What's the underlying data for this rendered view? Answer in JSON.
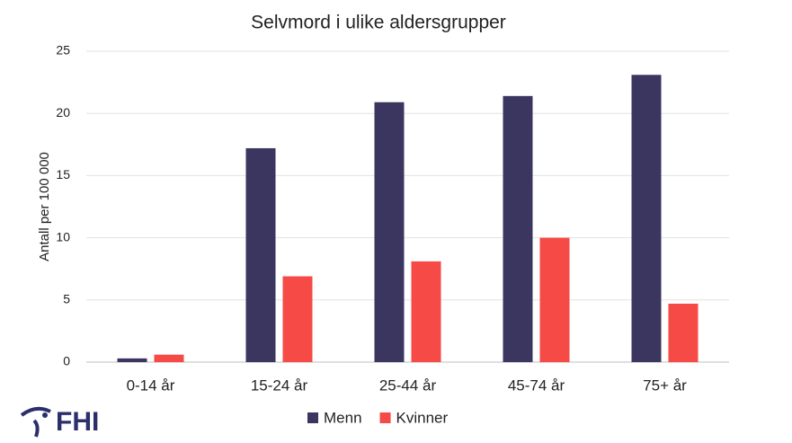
{
  "chart_data": {
    "type": "bar",
    "title": "Selvmord i ulike aldersgrupper",
    "y_label": "Antall per 100 000",
    "categories": [
      "0-14 år",
      "15-24 år",
      "25-44 år",
      "45-74 år",
      "75+ år"
    ],
    "series": [
      {
        "name": "Menn",
        "color": "#3b3660",
        "values": [
          0.3,
          17.2,
          20.9,
          21.4,
          23.1
        ]
      },
      {
        "name": "Kvinner",
        "color": "#f54a45",
        "values": [
          0.6,
          6.9,
          8.1,
          10.0,
          4.7
        ]
      }
    ],
    "ylim": [
      0,
      25
    ],
    "yticks": [
      0,
      5,
      10,
      15,
      20,
      25
    ],
    "grid": true,
    "legend": "bottom"
  },
  "logo": "FHI"
}
